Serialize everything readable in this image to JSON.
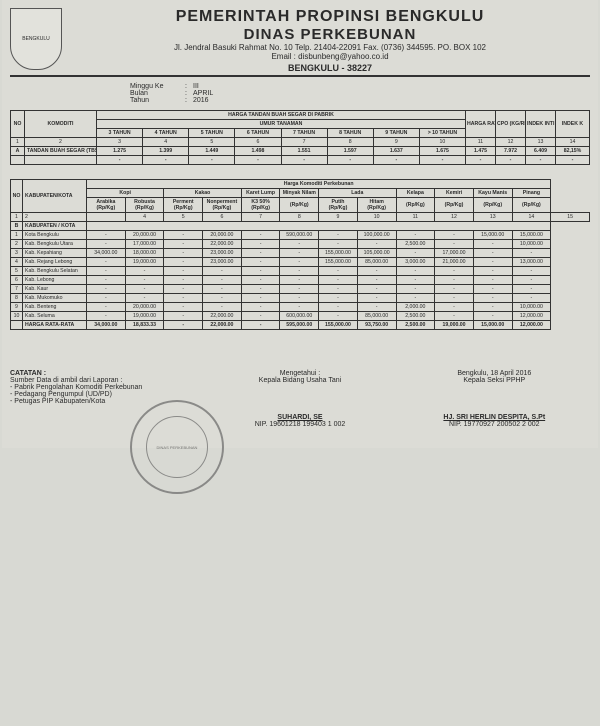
{
  "header": {
    "line1": "PEMERINTAH PROPINSI BENGKULU",
    "line2": "DINAS PERKEBUNAN",
    "line3": "Jl. Jendral Basuki Rahmat No. 10 Telp. 21404-22091 Fax. (0736) 344595. PO. BOX 102",
    "line4": "Email : disbunbeng@yahoo.co.id",
    "line5": "BENGKULU - 38227",
    "logo_text": "BENGKULU"
  },
  "meta": {
    "minggu_label": "Minggu Ke",
    "minggu_value": "III",
    "bulan_label": "Bulan",
    "bulan_value": "APRIL",
    "tahun_label": "Tahun",
    "tahun_value": "2016"
  },
  "table1": {
    "no": "NO",
    "komoditi": "KOMODITI",
    "header_group": "HARGA TANDAN BUAH SEGAR DI PABRIK",
    "umur_label": "UMUR TANAMAN",
    "ages": [
      "3 TAHUN",
      "4 TAHUN",
      "5 TAHUN",
      "6 TAHUN",
      "7 TAHUN",
      "8 TAHUN",
      "9 TAHUN",
      "> 10 TAHUN"
    ],
    "harga_rata2": "HARGA RATA2",
    "cpo": "CPO (KG/RP)",
    "indek_inti": "INDEK INTI (KG/RP)",
    "indek_k": "INDEK K",
    "num_row": [
      "1",
      "2",
      "3",
      "4",
      "5",
      "6",
      "7",
      "8",
      "9",
      "10",
      "11",
      "12",
      "13",
      "14"
    ],
    "rows": [
      {
        "no": "A",
        "name": "TANDAN BUAH SEGAR (TBS)",
        "vals": [
          "1.275",
          "1.399",
          "1.449",
          "1.498",
          "1.551",
          "1.597",
          "1.637",
          "1.675",
          "1.475",
          "7.972",
          "6.409",
          "82,15%"
        ]
      },
      {
        "no": "",
        "name": "",
        "vals": [
          "-",
          "-",
          "-",
          "-",
          "-",
          "-",
          "-",
          "-",
          "-",
          "-",
          "-",
          "-"
        ]
      }
    ]
  },
  "table2": {
    "no": "NO",
    "kabkota": "KABUPATEN/KOTA",
    "harga_group": "Harga Komoditi Perkebunan",
    "cols": [
      {
        "top": "Kopi",
        "sub": [
          {
            "n": "Arabika",
            "u": "(Rp/Kg)"
          },
          {
            "n": "Robusta",
            "u": "(Rp/Kg)"
          }
        ]
      },
      {
        "top": "Kakao",
        "sub": [
          {
            "n": "Perment",
            "u": "(Rp/Kg)"
          },
          {
            "n": "Nonperment",
            "u": "(Rp/Kg)"
          }
        ]
      },
      {
        "top": "Karet Lump",
        "sub": [
          {
            "n": "K3 50%",
            "u": "(Rp/Kg)"
          }
        ]
      },
      {
        "top": "Minyak Nilam",
        "sub": [
          {
            "n": "",
            "u": "(Rp/Kg)"
          }
        ]
      },
      {
        "top": "Lada",
        "sub": [
          {
            "n": "Putih",
            "u": "(Rp/Kg)"
          },
          {
            "n": "Hitam",
            "u": "(Rp/Kg)"
          }
        ]
      },
      {
        "top": "Kelapa",
        "sub": [
          {
            "n": "",
            "u": "(Rp/Kg)"
          }
        ]
      },
      {
        "top": "Kemiri",
        "sub": [
          {
            "n": "",
            "u": "(Rp/Kg)"
          }
        ]
      },
      {
        "top": "Kayu Manis",
        "sub": [
          {
            "n": "",
            "u": "(Rp/Kg)"
          }
        ]
      },
      {
        "top": "Pinang",
        "sub": [
          {
            "n": "",
            "u": "(Rp/Kg)"
          }
        ]
      }
    ],
    "num_row": [
      "1",
      "2",
      "",
      "4",
      "5",
      "6",
      "7",
      "8",
      "9",
      "10",
      "11",
      "12",
      "13",
      "14",
      "15"
    ],
    "section": "KABUPATEN / KOTA",
    "rows": [
      {
        "no": "1",
        "name": "Kota Bengkulu",
        "v": [
          "-",
          "20,000.00",
          "-",
          "20,000.00",
          "-",
          "590,000.00",
          "-",
          "100,000.00",
          "-",
          "-",
          "15,000.00",
          "15,000.00"
        ]
      },
      {
        "no": "2",
        "name": "Kab. Bengkulu Utara",
        "v": [
          "-",
          "17,000.00",
          "-",
          "22,000.00",
          "-",
          "-",
          "-",
          "-",
          "2,500.00",
          "-",
          "-",
          "10,000.00"
        ]
      },
      {
        "no": "3",
        "name": "Kab. Kepahiang",
        "v": [
          "34,000.00",
          "18,000.00",
          "-",
          "23,000.00",
          "-",
          "-",
          "155,000.00",
          "105,000.00",
          "-",
          "17,000.00",
          "-",
          "-"
        ]
      },
      {
        "no": "4",
        "name": "Kab. Rejang Lebong",
        "v": [
          "-",
          "19,000.00",
          "-",
          "23,000.00",
          "-",
          "-",
          "155,000.00",
          "85,000.00",
          "3,000.00",
          "21,000.00",
          "-",
          "13,000.00"
        ]
      },
      {
        "no": "5",
        "name": "Kab. Bengkulu Selatan",
        "v": [
          "-",
          "-",
          "-",
          "-",
          "-",
          "-",
          "-",
          "-",
          "-",
          "-",
          "-",
          "-"
        ]
      },
      {
        "no": "6",
        "name": "Kab. Lebong",
        "v": [
          "-",
          "-",
          "-",
          "-",
          "-",
          "-",
          "-",
          "-",
          "-",
          "-",
          "-",
          "-"
        ]
      },
      {
        "no": "7",
        "name": "Kab. Kaur",
        "v": [
          "-",
          "-",
          "-",
          "-",
          "-",
          "-",
          "-",
          "-",
          "-",
          "-",
          "-",
          "-"
        ]
      },
      {
        "no": "8",
        "name": "Kab. Mukomuko",
        "v": [
          "-",
          "-",
          "-",
          "-",
          "-",
          "-",
          "-",
          "-",
          "-",
          "-",
          "-",
          "-"
        ]
      },
      {
        "no": "9",
        "name": "Kab. Benteng",
        "v": [
          "-",
          "20,000.00",
          "-",
          "-",
          "-",
          "-",
          "-",
          "-",
          "2,000.00",
          "-",
          "-",
          "10,000.00"
        ]
      },
      {
        "no": "10",
        "name": "Kab. Seluma",
        "v": [
          "-",
          "19,000.00",
          "-",
          "22,000.00",
          "-",
          "600,000.00",
          "-",
          "85,000.00",
          "2,500.00",
          "-",
          "-",
          "12,000.00"
        ]
      }
    ],
    "avg": {
      "name": "HARGA RATA-RATA",
      "v": [
        "34,000.00",
        "18,833.33",
        "-",
        "22,000.00",
        "-",
        "595,000.00",
        "155,000.00",
        "93,750.00",
        "2,500.00",
        "19,000.00",
        "15,000.00",
        "12,000.00"
      ]
    }
  },
  "footer": {
    "catatan": "CATATAN :",
    "sumber": "Sumber Data di ambil dari Laporan :",
    "items": [
      "- Pabrik Pengolahan Komoditi Perkebunan",
      "- Pedagang Pengumpul (UD/PD)",
      "- Petugas PIP Kabupaten/Kota"
    ],
    "mengetahui": "Mengetahui :",
    "kepala_bidang": "Kepala Bidang Usaha Tani",
    "sig1_name": "SUHARDI, SE",
    "sig1_nip": "NIP. 19601218 199403 1 002",
    "tempat_tgl": "Bengkulu, 18  April 2016",
    "kepala_seksi": "Kepala Seksi PPHP",
    "sig2_name": "HJ. SRI HERLIN DESPITA, S.Pt",
    "sig2_nip": "NIP. 19770927 200502 2 002",
    "stamp_outer": "PEMERINTAH PROPINSI BENGKULU",
    "stamp_inner": "DINAS PERKEBUNAN"
  }
}
